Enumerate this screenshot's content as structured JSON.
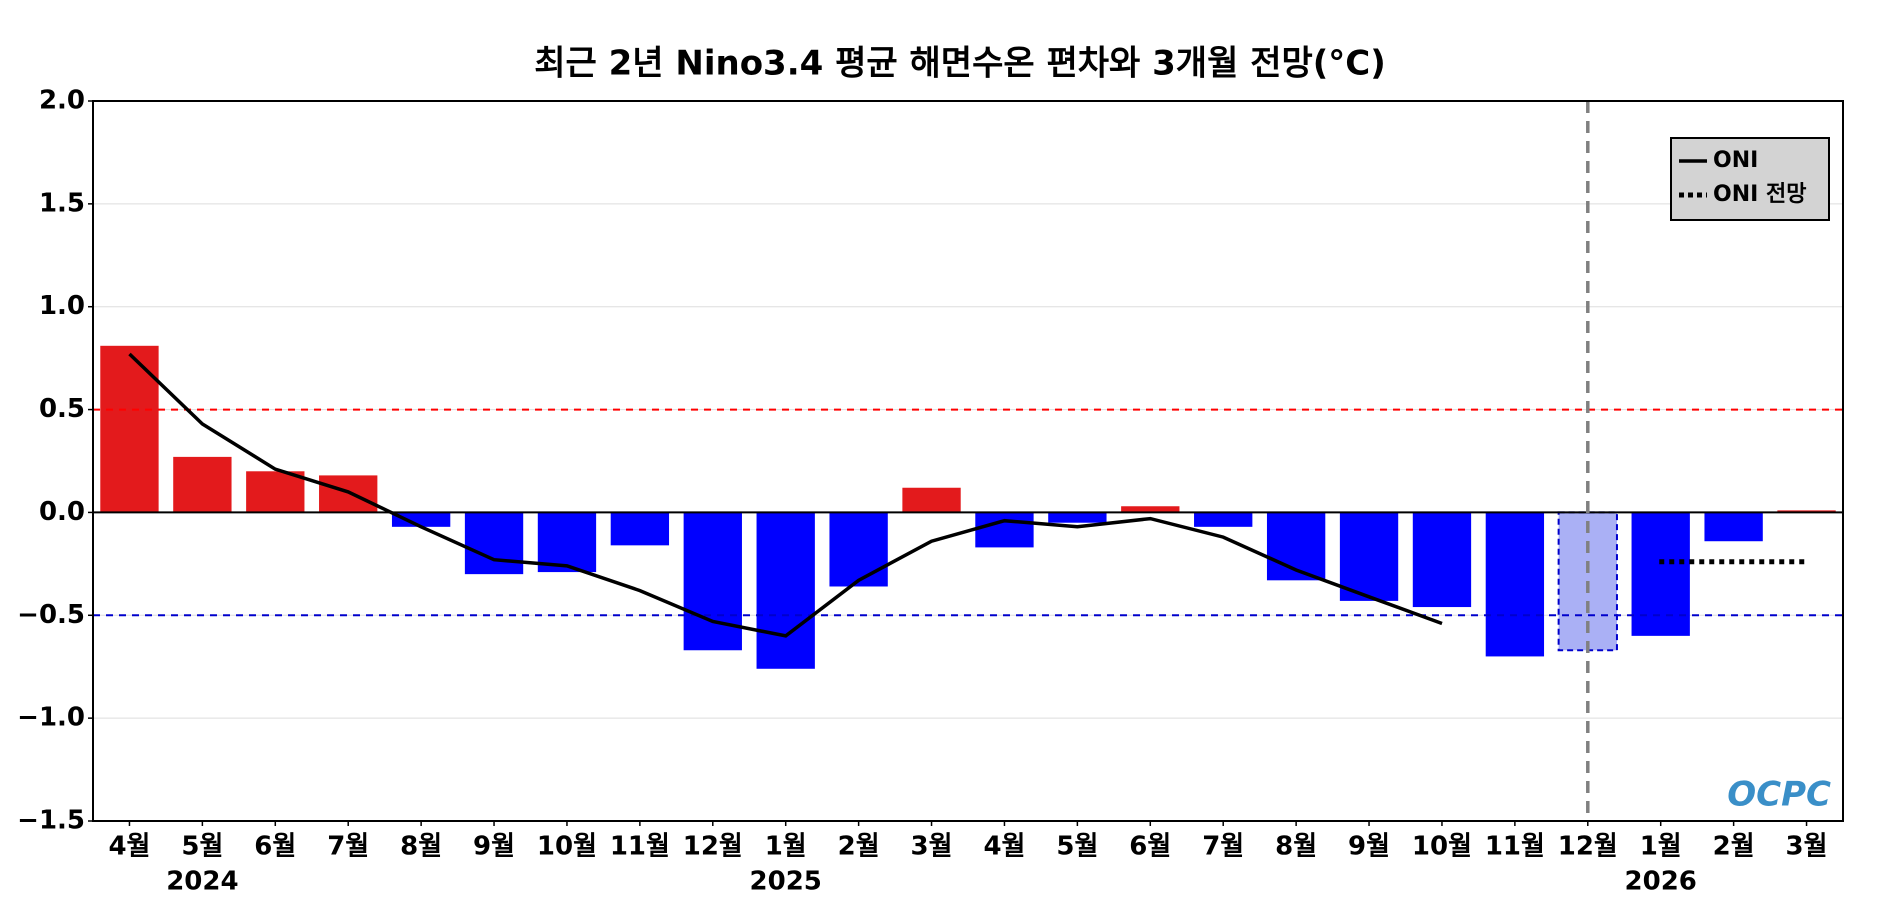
{
  "chart_data": {
    "type": "bar",
    "title": "최근 2년 Nino3.4 평균 해면수온 편차와 3개월 전망(°C)",
    "categories": [
      "4월",
      "5월",
      "6월",
      "7월",
      "8월",
      "9월",
      "10월",
      "11월",
      "12월",
      "1월",
      "2월",
      "3월",
      "4월",
      "5월",
      "6월",
      "7월",
      "8월",
      "9월",
      "10월",
      "11월",
      "12월",
      "1월",
      "2월",
      "3월"
    ],
    "years": [
      null,
      "2024",
      null,
      null,
      null,
      null,
      null,
      null,
      null,
      "2025",
      null,
      null,
      null,
      null,
      null,
      null,
      null,
      null,
      null,
      null,
      null,
      "2026",
      null,
      null
    ],
    "values": [
      0.81,
      0.27,
      0.2,
      0.18,
      -0.07,
      -0.3,
      -0.29,
      -0.16,
      -0.67,
      -0.76,
      -0.36,
      0.12,
      -0.17,
      -0.05,
      0.03,
      -0.07,
      -0.33,
      -0.43,
      -0.46,
      -0.7,
      -0.67,
      -0.6,
      -0.14,
      0.01
    ],
    "colors": [
      "#e31a1c",
      "#e31a1c",
      "#e31a1c",
      "#e31a1c",
      "#0000ff",
      "#0000ff",
      "#0000ff",
      "#0000ff",
      "#0000ff",
      "#0000ff",
      "#0000ff",
      "#e31a1c",
      "#0000ff",
      "#0000ff",
      "#e31a1c",
      "#0000ff",
      "#0000ff",
      "#0000ff",
      "#0000ff",
      "#0000ff",
      "#aab0f5",
      "#0000ff",
      "#0000ff",
      "#e31a1c"
    ],
    "series": [
      {
        "name": "ONI",
        "color": "#000000",
        "style": "solid",
        "values": [
          0.77,
          0.43,
          0.21,
          0.1,
          -0.07,
          -0.23,
          -0.26,
          -0.38,
          -0.53,
          -0.6,
          -0.33,
          -0.14,
          -0.04,
          -0.07,
          -0.03,
          -0.12,
          -0.28,
          -0.41,
          -0.54,
          null,
          null,
          null,
          null,
          null
        ]
      },
      {
        "name": "ONI 전망",
        "color": "#000000",
        "style": "dotted",
        "values": [
          null,
          null,
          null,
          null,
          null,
          null,
          null,
          null,
          null,
          null,
          null,
          null,
          null,
          null,
          null,
          null,
          null,
          null,
          null,
          null,
          null,
          -0.24,
          -0.24,
          -0.24
        ]
      }
    ],
    "reference_lines": [
      {
        "value": 0.5,
        "color": "#ff0000"
      },
      {
        "value": -0.5,
        "color": "#0000cc"
      }
    ],
    "ylim": [
      -1.5,
      2.0
    ],
    "yticks": [
      {
        "value": -1.5,
        "label": "−1.5"
      },
      {
        "value": -1.0,
        "label": "−1.0"
      },
      {
        "value": -0.5,
        "label": "−0.5"
      },
      {
        "value": 0,
        "label": "0.0"
      },
      {
        "value": 0.5,
        "label": "0.5"
      },
      {
        "value": 1.0,
        "label": "1.0"
      },
      {
        "value": 1.5,
        "label": "1.5"
      },
      {
        "value": 2.0,
        "label": "2.0"
      }
    ],
    "grid": true,
    "legend": "upper right",
    "logo": "OCPC"
  }
}
